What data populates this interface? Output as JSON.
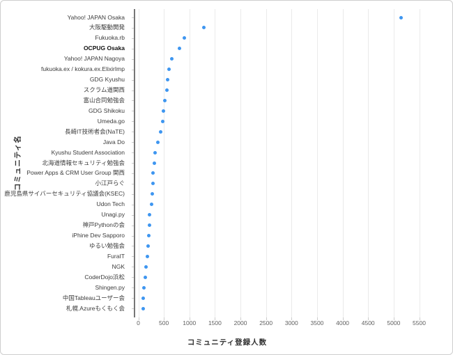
{
  "chart_data": {
    "type": "scatter",
    "orientation": "horizontal",
    "title": "",
    "xlabel": "コミュニティ登録人数",
    "ylabel": "コミュニティ名",
    "xlim": [
      0,
      5500
    ],
    "x_ticks": [
      0,
      500,
      1000,
      1500,
      2000,
      2500,
      3000,
      3500,
      4000,
      4500,
      5000,
      5500
    ],
    "grid": true,
    "legend": "none",
    "marker_color": "#3E96F0",
    "categories": [
      "Yahoo! JAPAN Osaka",
      "大阪駆動開発",
      "Fukuoka.rb",
      "OCPUG Osaka",
      "Yahoo! JAPAN Nagoya",
      "fukuoka.ex / kokura.ex.ElixirImp",
      "GDG Kyushu",
      "スクラム道関西",
      "富山合同勉強会",
      "GDG Shikoku",
      "Umeda.go",
      "長崎IT技術者会(NaTE)",
      "Java Do",
      "Kyushu Student Association",
      "北海道情報セキュリティ勉強会",
      "Power Apps & CRM User Group 関西",
      "小江戸らぐ",
      "鹿児島県サイバーセキュリティ協議会(KSEC)",
      "Udon Tech",
      "Unagi.py",
      "神戸Pythonの会",
      "iPhine Dev Sapporo",
      "ゆるい勉強会",
      "FuraIT",
      "NGK",
      "CoderDojo浜松",
      "Shingen.py",
      "中国Tableauユーザー会",
      "札幌.Azureもくもく会"
    ],
    "values": [
      5150,
      1280,
      900,
      800,
      655,
      600,
      570,
      565,
      520,
      490,
      475,
      430,
      380,
      330,
      310,
      290,
      285,
      270,
      265,
      225,
      212,
      205,
      195,
      180,
      150,
      135,
      110,
      100,
      90
    ],
    "bold_categories": [
      "OCPUG Osaka"
    ]
  }
}
